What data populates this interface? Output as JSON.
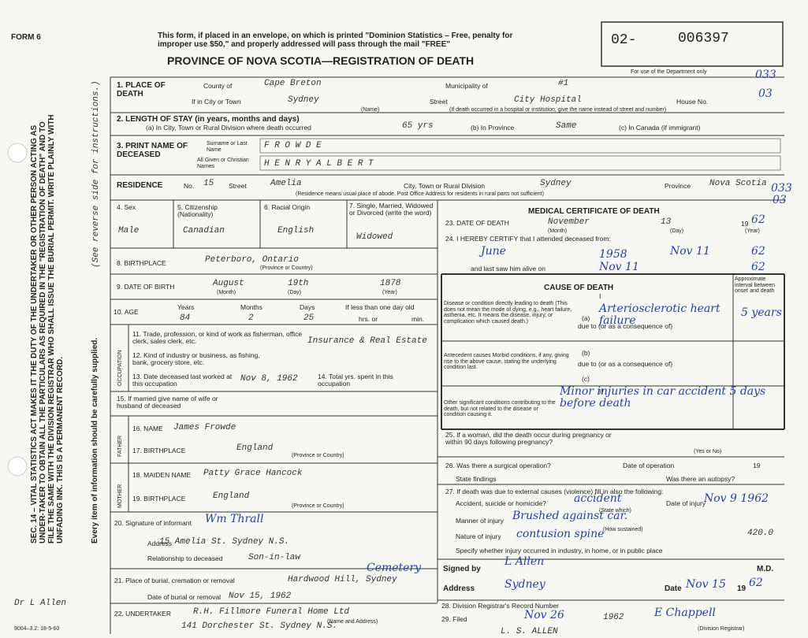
{
  "form_number": "FORM 6",
  "header": {
    "notice": "This form, if placed in an envelope, on which is printed \"Dominion Statistics – Free, penalty for improper use $50,\" and properly addressed will pass through the mail \"FREE\"",
    "title": "PROVINCE OF NOVA SCOTIA—REGISTRATION OF DEATH",
    "registration_prefix": "02-",
    "registration_number": "006397",
    "department_note": "For use of the Department only",
    "codes": [
      "033",
      "03",
      "033",
      "03"
    ]
  },
  "side": {
    "statute": "SEC. 14 – VITAL STATISTICS ACT MAKES IT THE DUTY OF THE UNDERTAKER OR OTHER PERSON ACTING AS UNDER-TAKER TO OBTAIN ALL THE PARTICULARS AS REQUIRED IN THE \"REGISTRATION OF DEATH\" AND TO FILE THE SAME WITH THE DIVISION REGISTRAR WHO SHALL ISSUE THE BURIAL PERMIT. WRITE PLAINLY WITH UNFADING INK. THIS IS A PERMANENT RECORD.",
    "instructions": "(See reverse side for instructions.)",
    "supply": "Every item of information should be carefully supplied.",
    "physician": "Dr L Allen",
    "form_code": "9004–3.2: 18-5-60"
  },
  "place": {
    "label": "1. PLACE OF DEATH",
    "county_label": "County of",
    "county": "Cape Breton",
    "municipality_label": "Municipality of",
    "municipality": "#1",
    "city_label": "If in City or Town",
    "city": "Sydney",
    "name_note": "(Name)",
    "street_label": "Street",
    "street": "City Hospital",
    "house_label": "House No.",
    "note": "(If death occurred in a hospital or institution, give the name instead of street and number)"
  },
  "stay": {
    "label": "2. LENGTH OF STAY (in years, months and days)",
    "a_label": "(a) In City, Town or Rural Division where death occurred",
    "a": "65 yrs",
    "b_label": "(b) In Province",
    "b": "Same",
    "c_label": "(c) In Canada (if immigrant)"
  },
  "name": {
    "label": "3. PRINT NAME OF DECEASED",
    "surname_label": "Surname or Last Name",
    "surname": "F R O W D E",
    "given_label": "All Given or Christian Names",
    "given": "H E N R Y   A L B E R T"
  },
  "residence": {
    "label": "RESIDENCE",
    "no_label": "No.",
    "no": "15",
    "street_label": "Street",
    "street": "Amelia",
    "city_label": "City, Town or Rural Division",
    "city": "Sydney",
    "province_label": "Province",
    "province": "Nova Scotia",
    "note": "(Residence means usual place of abode. Post Office Address for residents in rural parts not sufficient)"
  },
  "personal": {
    "sex_label": "4. Sex",
    "sex": "Male",
    "citizenship_label": "5. Citizenship (Nationality)",
    "citizenship": "Canadian",
    "racial_label": "6. Racial Origin",
    "racial": "English",
    "marital_label": "7. Single, Married, Widowed or Divorced (write the word)",
    "marital": "Widowed"
  },
  "birthplace": {
    "label": "8. BIRTHPLACE",
    "value": "Peterboro, Ontario",
    "note": "(Province or Country)"
  },
  "birth_date": {
    "label": "9. DATE OF BIRTH",
    "month": "August",
    "day": "19th",
    "year": "1878",
    "month_note": "(Month)",
    "day_note": "(Day)",
    "year_note": "(Year)"
  },
  "age": {
    "label": "10. AGE",
    "years_label": "Years",
    "years": "84",
    "months_label": "Months",
    "months": "2",
    "days_label": "Days",
    "days": "25",
    "less_label": "If less than one day old",
    "hrs_label": "hrs. or",
    "min_label": "min."
  },
  "occupation": {
    "label": "OCCUPATION",
    "trade_label": "11. Trade, profession, or kind of work as fisherman, office clerk, sales clerk, etc.",
    "trade": "Insurance & Real Estate",
    "industry_label": "12. Kind of industry or business, as fishing, bank, grocery store, etc.",
    "last_worked_label": "13. Date deceased last worked at this occupation",
    "last_worked": "Nov 8, 1962",
    "years_label": "14. Total yrs. spent in this occupation"
  },
  "spouse_label": "15. If married give name of wife or husband of deceased",
  "father": {
    "label": "FATHER",
    "name_label": "16. NAME",
    "name": "James Frowde",
    "birthplace_label": "17. BIRTHPLACE",
    "birthplace": "England",
    "note": "(Province or Country)"
  },
  "mother": {
    "label": "MOTHER",
    "name_label": "18. MAIDEN NAME",
    "name": "Patty Grace Hancock",
    "birthplace_label": "19. BIRTHPLACE",
    "birthplace": "England",
    "note": "(Province or Country)"
  },
  "informant": {
    "label": "20. Signature of informant",
    "signature": "Wm Thrall",
    "address_label": "Address",
    "address": "15 Amelia St. Sydney N.S.",
    "relationship_label": "Relationship to deceased",
    "relationship": "Son-in-law"
  },
  "burial": {
    "label": "21. Place of burial, cremation or removal",
    "place": "Hardwood Hill, Sydney",
    "place_note": "Cemetery",
    "date_label": "Date of burial or removal",
    "date": "Nov 15, 1962"
  },
  "undertaker": {
    "label": "22. UNDERTAKER",
    "name": "R.H. Fillmore Funeral Home Ltd",
    "address": "141 Dorchester St. Sydney N.S.",
    "note": "(Name and Address)"
  },
  "medical": {
    "title": "MEDICAL CERTIFICATE OF DEATH",
    "death_label": "23. DATE OF DEATH",
    "death_month": "November",
    "death_day": "13",
    "death_year_prefix": "19",
    "death_year": "62",
    "month_note": "(Month)",
    "day_note": "(Day)",
    "year_note": "(Year)",
    "certify_label": "24. I HEREBY CERTIFY that I attended deceased from:",
    "from": "June",
    "from_year": "1958",
    "to": "Nov 11",
    "to_year": "62",
    "last_seen_label": "and last saw him alive on",
    "last_seen": "Nov 11",
    "last_seen_year": "62",
    "cause_title": "CAUSE OF DEATH",
    "interval_label": "Approximate interval between onset and death",
    "part1": "I",
    "direct_label": "Disease or condition directly leading to death (This does not mean the mode of dying, e.g., heart failure, asthenia, etc. It means the disease, injury, or complication which caused death.)",
    "a": "(a)",
    "due_a": "due to (or as a consequence of)",
    "cause_a": "Arteriosclerotic heart failure",
    "interval_a": "5 years",
    "b": "(b)",
    "due_b": "due to (or as a consequence of)",
    "c": "(c)",
    "antecedent_label": "Antecedent causes Morbid conditions, if any, giving rise to the above cause, stating the underlying condition last.",
    "part2": "II",
    "other_label": "Other significant conditions contributing to the death, but not related to the disease or condition causing it.",
    "other": "Minor injuries in car accident 5 days before death",
    "pregnancy_label": "25. If a woman, did the death occur during pregnancy or within 90 days following pregnancy?",
    "yes_no": "(Yes or No)",
    "operation_label": "26. Was there a surgical operation?",
    "operation_date_label": "Date of operation",
    "operation_year": "19",
    "findings_label": "State findings",
    "autopsy_label": "Was there an autopsy?",
    "external_label": "27. If death was due to external causes (violence) fill in also the following:",
    "accident_label": "Accident, suicide or homicide?",
    "accident": "accident",
    "state_which": "(State which)",
    "injury_date_label": "Date of injury",
    "injury_date": "Nov 9 1962",
    "manner_label": "Manner of injury",
    "manner": "Brushed against car.",
    "how_note": "(How sustained)",
    "nature_label": "Nature of injury",
    "nature": "contusion spine",
    "code": "420.0",
    "place_label": "Specify whether injury occurred in industry, in home, or in public place",
    "signed_label": "Signed by",
    "signed": "L Allen",
    "md": "M.D.",
    "address_label": "Address",
    "address": "Sydney",
    "date_label": "Date",
    "date": "Nov 15",
    "year_prefix": "19",
    "year": "62"
  },
  "registrar": {
    "record_label": "28. Division Registrar's Record Number",
    "filed_label": "29. Filed",
    "filed": "Nov 26",
    "filed_year": "1962",
    "signature": "E Chappell",
    "note": "(Division Registrar)",
    "stamp": "L. S. ALLEN"
  }
}
